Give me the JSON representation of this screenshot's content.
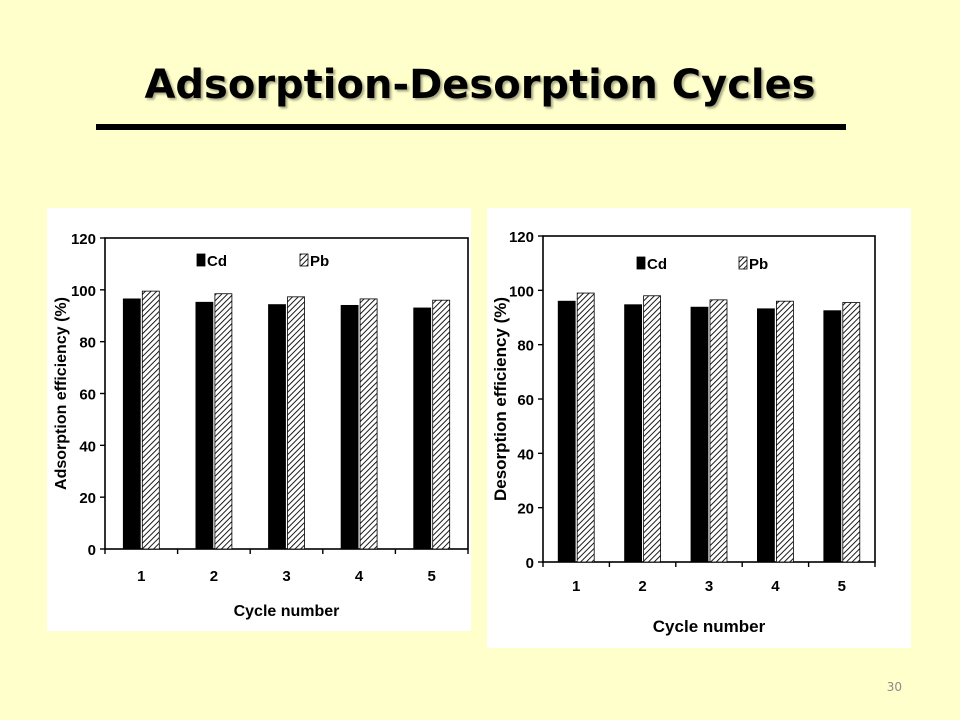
{
  "slide": {
    "title": "Adsorption-Desorption Cycles",
    "page_number": "30"
  },
  "colors": {
    "background": "#FFFFCC",
    "cd_fill": "#000000",
    "pb_fill": "hatched"
  },
  "chart_data": [
    {
      "type": "bar",
      "categories": [
        "1",
        "2",
        "3",
        "4",
        "5"
      ],
      "series": [
        {
          "name": "Cd",
          "values": [
            96.5,
            95.2,
            94.3,
            94.0,
            93.0
          ]
        },
        {
          "name": "Pb",
          "values": [
            99.5,
            98.5,
            97.3,
            96.5,
            96.0
          ]
        }
      ],
      "xlabel": "Cycle number",
      "ylabel": "Adsorption efficiency (%)",
      "ylim": [
        0,
        120
      ],
      "yticks": [
        "0",
        "20",
        "40",
        "60",
        "80",
        "100",
        "120"
      ],
      "legend_placement": "top"
    },
    {
      "type": "bar",
      "categories": [
        "1",
        "2",
        "3",
        "4",
        "5"
      ],
      "series": [
        {
          "name": "Cd",
          "values": [
            96.0,
            94.7,
            93.8,
            93.2,
            92.5
          ]
        },
        {
          "name": "Pb",
          "values": [
            99.0,
            98.0,
            96.5,
            96.0,
            95.5
          ]
        }
      ],
      "xlabel": "Cycle number",
      "ylabel": "Desorption efficiency (%)",
      "ylim": [
        0,
        120
      ],
      "yticks": [
        "0",
        "20",
        "40",
        "60",
        "80",
        "100",
        "120"
      ],
      "legend_placement": "top"
    }
  ]
}
